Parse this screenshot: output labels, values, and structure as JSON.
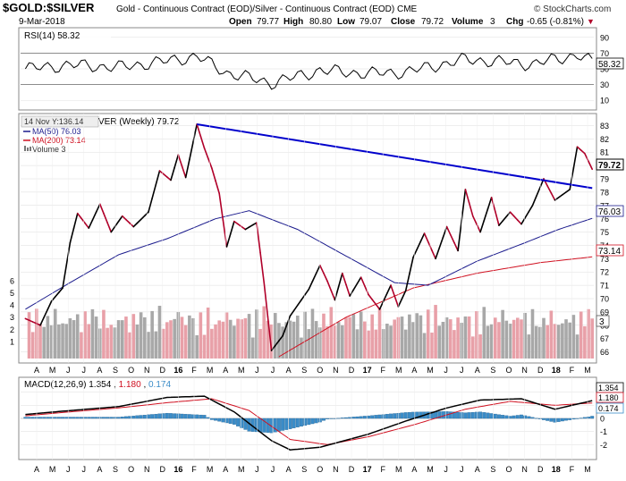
{
  "header": {
    "symbol": "$GOLD:$SILVER",
    "description": "Gold - Continuous Contract (EOD)/Silver - Continuous Contract (EOD)  CME",
    "brand": "© StockCharts.com",
    "date": "9-Mar-2018",
    "open_label": "Open",
    "open": "79.77",
    "high_label": "High",
    "high": "80.80",
    "low_label": "Low",
    "low": "79.07",
    "close_label": "Close",
    "close": "79.72",
    "volume_label": "Volume",
    "volume": "3",
    "chg_label": "Chg",
    "chg": "-0.65 (-0.81%)",
    "chg_arrow": "▼"
  },
  "rsi_panel": {
    "label": "RSI(14) 58.32",
    "ticks": [
      "90",
      "70",
      "50",
      "30",
      "10"
    ],
    "current": "58.32"
  },
  "price_panel": {
    "tooltip": "14 Nov Y:136.14",
    "title": "VER (Weekly) 79.72",
    "legend": [
      "MA(50) 76.03",
      "MA(200) 73.14",
      "Volume 3"
    ],
    "ticks_right": [
      "83",
      "82",
      "81",
      "80",
      "79",
      "78",
      "77",
      "76",
      "75",
      "74",
      "73",
      "72",
      "71",
      "70",
      "69",
      "68",
      "67",
      "66"
    ],
    "ticks_left_volume": [
      "6",
      "5",
      "4",
      "3",
      "2",
      "1"
    ],
    "current_price": "79.72",
    "current_ma50": "76.03",
    "current_ma200": "73.14",
    "current_volume": "3"
  },
  "macd_panel": {
    "label_prefix": "MACD(12,26,9)",
    "macd": "1.354",
    "signal": "1.180",
    "histogram": "0.174",
    "ticks": [
      "2",
      "1",
      "0",
      "-1",
      "-2"
    ],
    "current_macd": "1.354",
    "current_signal": "1.180",
    "current_hist": "0.174"
  },
  "x_axis_labels": [
    "A",
    "M",
    "J",
    "J",
    "A",
    "S",
    "O",
    "N",
    "D",
    "16",
    "F",
    "M",
    "A",
    "M",
    "J",
    "J",
    "A",
    "S",
    "O",
    "N",
    "D",
    "17",
    "F",
    "M",
    "A",
    "M",
    "J",
    "J",
    "A",
    "S",
    "O",
    "N",
    "D",
    "18",
    "F",
    "M"
  ],
  "colors": {
    "price_up": "#000000",
    "price_down": "#b0002a",
    "ma50": "#1a1a8c",
    "ma200": "#d01020",
    "trendline": "#0000cc",
    "vol_up": "#a8a8a8",
    "vol_down": "#e8a0a8",
    "macd_hist": "#3a8cc8",
    "macd_signal": "#d01020"
  },
  "chart_data": {
    "type": "line",
    "title": "$GOLD:$SILVER (Weekly)",
    "frequency": "weekly",
    "x_start": "2015-04",
    "x_end": "2018-03",
    "y_range": [
      65.5,
      83.5
    ],
    "price_anchors": [
      [
        "2015-04-10",
        68.5
      ],
      [
        "2015-05-08",
        68.0
      ],
      [
        "2015-05-29",
        69.8
      ],
      [
        "2015-06-19",
        70.8
      ],
      [
        "2015-07-03",
        74.2
      ],
      [
        "2015-07-17",
        76.4
      ],
      [
        "2015-08-07",
        75.3
      ],
      [
        "2015-08-28",
        77.1
      ],
      [
        "2015-09-18",
        75.0
      ],
      [
        "2015-10-09",
        76.2
      ],
      [
        "2015-10-30",
        75.4
      ],
      [
        "2015-11-27",
        76.5
      ],
      [
        "2015-12-18",
        79.6
      ],
      [
        "2016-01-08",
        78.9
      ],
      [
        "2016-01-22",
        80.8
      ],
      [
        "2016-02-05",
        79.1
      ],
      [
        "2016-02-26",
        83.1
      ],
      [
        "2016-03-11",
        81.3
      ],
      [
        "2016-03-25",
        79.8
      ],
      [
        "2016-04-08",
        77.9
      ],
      [
        "2016-04-22",
        73.9
      ],
      [
        "2016-05-06",
        75.8
      ],
      [
        "2016-05-27",
        75.2
      ],
      [
        "2016-06-17",
        75.7
      ],
      [
        "2016-07-01",
        71.2
      ],
      [
        "2016-07-15",
        66.1
      ],
      [
        "2016-08-05",
        67.2
      ],
      [
        "2016-08-19",
        68.7
      ],
      [
        "2016-09-02",
        69.5
      ],
      [
        "2016-09-23",
        70.7
      ],
      [
        "2016-10-14",
        72.5
      ],
      [
        "2016-10-28",
        71.3
      ],
      [
        "2016-11-11",
        69.9
      ],
      [
        "2016-11-25",
        71.9
      ],
      [
        "2016-12-09",
        70.2
      ],
      [
        "2016-12-30",
        71.6
      ],
      [
        "2017-01-13",
        70.3
      ],
      [
        "2017-02-03",
        69.2
      ],
      [
        "2017-02-24",
        71.0
      ],
      [
        "2017-03-10",
        69.4
      ],
      [
        "2017-03-24",
        70.6
      ],
      [
        "2017-04-07",
        73.1
      ],
      [
        "2017-04-28",
        74.9
      ],
      [
        "2017-05-19",
        73.0
      ],
      [
        "2017-06-09",
        75.4
      ],
      [
        "2017-06-30",
        73.6
      ],
      [
        "2017-07-14",
        78.2
      ],
      [
        "2017-07-28",
        76.2
      ],
      [
        "2017-08-11",
        75.0
      ],
      [
        "2017-09-01",
        77.6
      ],
      [
        "2017-09-15",
        75.5
      ],
      [
        "2017-10-06",
        76.5
      ],
      [
        "2017-10-27",
        75.6
      ],
      [
        "2017-11-17",
        77.0
      ],
      [
        "2017-12-08",
        79.0
      ],
      [
        "2017-12-29",
        77.4
      ],
      [
        "2018-01-12",
        77.8
      ],
      [
        "2018-01-26",
        78.2
      ],
      [
        "2018-02-09",
        81.4
      ],
      [
        "2018-02-23",
        80.9
      ],
      [
        "2018-03-09",
        79.72
      ]
    ],
    "ma50_anchors": [
      [
        "2015-04-10",
        69.2
      ],
      [
        "2015-07-03",
        71.2
      ],
      [
        "2015-10-02",
        73.3
      ],
      [
        "2016-01-01",
        74.5
      ],
      [
        "2016-04-01",
        76.0
      ],
      [
        "2016-06-03",
        76.6
      ],
      [
        "2016-09-02",
        75.2
      ],
      [
        "2016-12-02",
        73.2
      ],
      [
        "2017-03-03",
        71.2
      ],
      [
        "2017-05-05",
        71.0
      ],
      [
        "2017-08-04",
        72.8
      ],
      [
        "2017-11-03",
        74.2
      ],
      [
        "2018-01-05",
        75.2
      ],
      [
        "2018-03-09",
        76.03
      ]
    ],
    "ma200_anchors": [
      [
        "2016-04-01",
        62.8
      ],
      [
        "2016-08-05",
        65.8
      ],
      [
        "2016-12-02",
        68.6
      ],
      [
        "2017-04-07",
        70.8
      ],
      [
        "2017-08-04",
        71.9
      ],
      [
        "2017-12-01",
        72.7
      ],
      [
        "2018-03-09",
        73.14
      ]
    ],
    "trendline": {
      "from": [
        "2016-02-26",
        83.1
      ],
      "to": [
        "2018-03-09",
        78.3
      ]
    },
    "rsi_range": [
      10,
      90
    ],
    "rsi_anchors": [
      [
        "2015-04-10",
        50
      ],
      [
        "2015-07-03",
        55
      ],
      [
        "2015-10-02",
        52
      ],
      [
        "2016-01-01",
        60
      ],
      [
        "2016-02-26",
        66
      ],
      [
        "2016-04-22",
        45
      ],
      [
        "2016-07-15",
        32
      ],
      [
        "2016-10-14",
        48
      ],
      [
        "2017-01-13",
        44
      ],
      [
        "2017-03-24",
        46
      ],
      [
        "2017-07-14",
        62
      ],
      [
        "2017-11-17",
        56
      ],
      [
        "2018-02-09",
        68
      ],
      [
        "2018-03-09",
        58.32
      ]
    ],
    "macd_range": [
      -3,
      3
    ],
    "macd_anchors": [
      [
        "2015-04-10",
        0.3
      ],
      [
        "2015-07-03",
        0.6
      ],
      [
        "2015-10-02",
        0.9
      ],
      [
        "2016-01-01",
        1.6
      ],
      [
        "2016-03-11",
        1.7
      ],
      [
        "2016-05-06",
        0.5
      ],
      [
        "2016-07-15",
        -1.7
      ],
      [
        "2016-08-19",
        -2.4
      ],
      [
        "2016-10-14",
        -2.2
      ],
      [
        "2017-01-13",
        -1.2
      ],
      [
        "2017-03-24",
        -0.2
      ],
      [
        "2017-06-09",
        0.8
      ],
      [
        "2017-08-11",
        1.4
      ],
      [
        "2017-10-27",
        1.5
      ],
      [
        "2017-12-29",
        0.7
      ],
      [
        "2018-03-09",
        1.354
      ]
    ],
    "signal_anchors": [
      [
        "2015-04-10",
        0.2
      ],
      [
        "2015-07-03",
        0.5
      ],
      [
        "2015-10-02",
        0.8
      ],
      [
        "2016-01-01",
        1.2
      ],
      [
        "2016-03-25",
        1.5
      ],
      [
        "2016-06-03",
        0.6
      ],
      [
        "2016-08-19",
        -1.6
      ],
      [
        "2016-10-28",
        -2.0
      ],
      [
        "2017-01-13",
        -1.4
      ],
      [
        "2017-04-07",
        -0.5
      ],
      [
        "2017-07-14",
        0.7
      ],
      [
        "2017-10-06",
        1.3
      ],
      [
        "2017-12-29",
        1.0
      ],
      [
        "2018-03-09",
        1.18
      ]
    ]
  }
}
